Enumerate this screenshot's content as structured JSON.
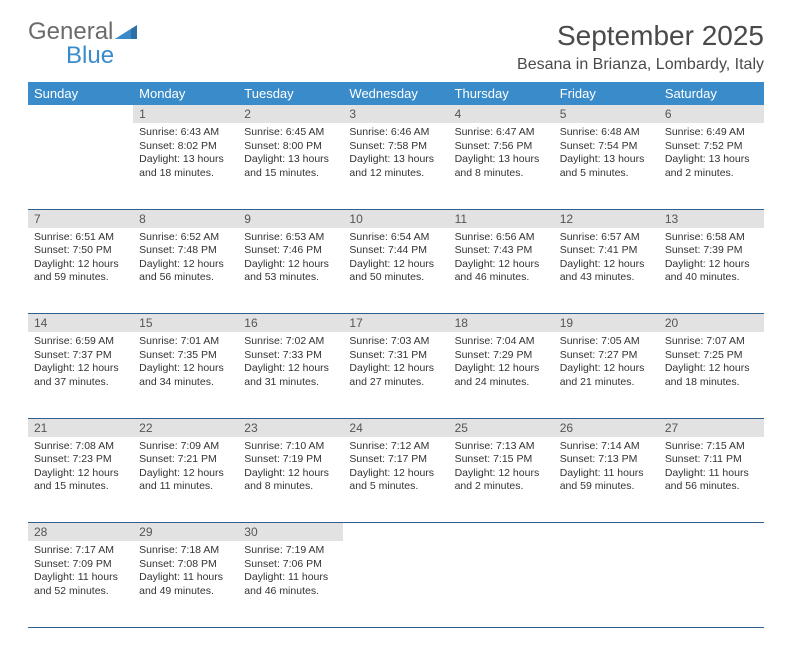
{
  "logo": {
    "general": "General",
    "blue": "Blue"
  },
  "title": "September 2025",
  "location": "Besana in Brianza, Lombardy, Italy",
  "colors": {
    "header_bg": "#3a8bc9",
    "header_text": "#ffffff",
    "daynum_bg": "#e2e2e2",
    "row_border": "#2f5f8f",
    "text": "#333333",
    "logo_gray": "#6b6b6b",
    "logo_blue": "#3a8bc9"
  },
  "weekdays": [
    "Sunday",
    "Monday",
    "Tuesday",
    "Wednesday",
    "Thursday",
    "Friday",
    "Saturday"
  ],
  "weeks": [
    {
      "nums": [
        "",
        "1",
        "2",
        "3",
        "4",
        "5",
        "6"
      ],
      "cells": [
        null,
        {
          "sunrise": "Sunrise: 6:43 AM",
          "sunset": "Sunset: 8:02 PM",
          "daylight": "Daylight: 13 hours and 18 minutes."
        },
        {
          "sunrise": "Sunrise: 6:45 AM",
          "sunset": "Sunset: 8:00 PM",
          "daylight": "Daylight: 13 hours and 15 minutes."
        },
        {
          "sunrise": "Sunrise: 6:46 AM",
          "sunset": "Sunset: 7:58 PM",
          "daylight": "Daylight: 13 hours and 12 minutes."
        },
        {
          "sunrise": "Sunrise: 6:47 AM",
          "sunset": "Sunset: 7:56 PM",
          "daylight": "Daylight: 13 hours and 8 minutes."
        },
        {
          "sunrise": "Sunrise: 6:48 AM",
          "sunset": "Sunset: 7:54 PM",
          "daylight": "Daylight: 13 hours and 5 minutes."
        },
        {
          "sunrise": "Sunrise: 6:49 AM",
          "sunset": "Sunset: 7:52 PM",
          "daylight": "Daylight: 13 hours and 2 minutes."
        }
      ]
    },
    {
      "nums": [
        "7",
        "8",
        "9",
        "10",
        "11",
        "12",
        "13"
      ],
      "cells": [
        {
          "sunrise": "Sunrise: 6:51 AM",
          "sunset": "Sunset: 7:50 PM",
          "daylight": "Daylight: 12 hours and 59 minutes."
        },
        {
          "sunrise": "Sunrise: 6:52 AM",
          "sunset": "Sunset: 7:48 PM",
          "daylight": "Daylight: 12 hours and 56 minutes."
        },
        {
          "sunrise": "Sunrise: 6:53 AM",
          "sunset": "Sunset: 7:46 PM",
          "daylight": "Daylight: 12 hours and 53 minutes."
        },
        {
          "sunrise": "Sunrise: 6:54 AM",
          "sunset": "Sunset: 7:44 PM",
          "daylight": "Daylight: 12 hours and 50 minutes."
        },
        {
          "sunrise": "Sunrise: 6:56 AM",
          "sunset": "Sunset: 7:43 PM",
          "daylight": "Daylight: 12 hours and 46 minutes."
        },
        {
          "sunrise": "Sunrise: 6:57 AM",
          "sunset": "Sunset: 7:41 PM",
          "daylight": "Daylight: 12 hours and 43 minutes."
        },
        {
          "sunrise": "Sunrise: 6:58 AM",
          "sunset": "Sunset: 7:39 PM",
          "daylight": "Daylight: 12 hours and 40 minutes."
        }
      ]
    },
    {
      "nums": [
        "14",
        "15",
        "16",
        "17",
        "18",
        "19",
        "20"
      ],
      "cells": [
        {
          "sunrise": "Sunrise: 6:59 AM",
          "sunset": "Sunset: 7:37 PM",
          "daylight": "Daylight: 12 hours and 37 minutes."
        },
        {
          "sunrise": "Sunrise: 7:01 AM",
          "sunset": "Sunset: 7:35 PM",
          "daylight": "Daylight: 12 hours and 34 minutes."
        },
        {
          "sunrise": "Sunrise: 7:02 AM",
          "sunset": "Sunset: 7:33 PM",
          "daylight": "Daylight: 12 hours and 31 minutes."
        },
        {
          "sunrise": "Sunrise: 7:03 AM",
          "sunset": "Sunset: 7:31 PM",
          "daylight": "Daylight: 12 hours and 27 minutes."
        },
        {
          "sunrise": "Sunrise: 7:04 AM",
          "sunset": "Sunset: 7:29 PM",
          "daylight": "Daylight: 12 hours and 24 minutes."
        },
        {
          "sunrise": "Sunrise: 7:05 AM",
          "sunset": "Sunset: 7:27 PM",
          "daylight": "Daylight: 12 hours and 21 minutes."
        },
        {
          "sunrise": "Sunrise: 7:07 AM",
          "sunset": "Sunset: 7:25 PM",
          "daylight": "Daylight: 12 hours and 18 minutes."
        }
      ]
    },
    {
      "nums": [
        "21",
        "22",
        "23",
        "24",
        "25",
        "26",
        "27"
      ],
      "cells": [
        {
          "sunrise": "Sunrise: 7:08 AM",
          "sunset": "Sunset: 7:23 PM",
          "daylight": "Daylight: 12 hours and 15 minutes."
        },
        {
          "sunrise": "Sunrise: 7:09 AM",
          "sunset": "Sunset: 7:21 PM",
          "daylight": "Daylight: 12 hours and 11 minutes."
        },
        {
          "sunrise": "Sunrise: 7:10 AM",
          "sunset": "Sunset: 7:19 PM",
          "daylight": "Daylight: 12 hours and 8 minutes."
        },
        {
          "sunrise": "Sunrise: 7:12 AM",
          "sunset": "Sunset: 7:17 PM",
          "daylight": "Daylight: 12 hours and 5 minutes."
        },
        {
          "sunrise": "Sunrise: 7:13 AM",
          "sunset": "Sunset: 7:15 PM",
          "daylight": "Daylight: 12 hours and 2 minutes."
        },
        {
          "sunrise": "Sunrise: 7:14 AM",
          "sunset": "Sunset: 7:13 PM",
          "daylight": "Daylight: 11 hours and 59 minutes."
        },
        {
          "sunrise": "Sunrise: 7:15 AM",
          "sunset": "Sunset: 7:11 PM",
          "daylight": "Daylight: 11 hours and 56 minutes."
        }
      ]
    },
    {
      "nums": [
        "28",
        "29",
        "30",
        "",
        "",
        "",
        ""
      ],
      "cells": [
        {
          "sunrise": "Sunrise: 7:17 AM",
          "sunset": "Sunset: 7:09 PM",
          "daylight": "Daylight: 11 hours and 52 minutes."
        },
        {
          "sunrise": "Sunrise: 7:18 AM",
          "sunset": "Sunset: 7:08 PM",
          "daylight": "Daylight: 11 hours and 49 minutes."
        },
        {
          "sunrise": "Sunrise: 7:19 AM",
          "sunset": "Sunset: 7:06 PM",
          "daylight": "Daylight: 11 hours and 46 minutes."
        },
        null,
        null,
        null,
        null
      ]
    }
  ]
}
